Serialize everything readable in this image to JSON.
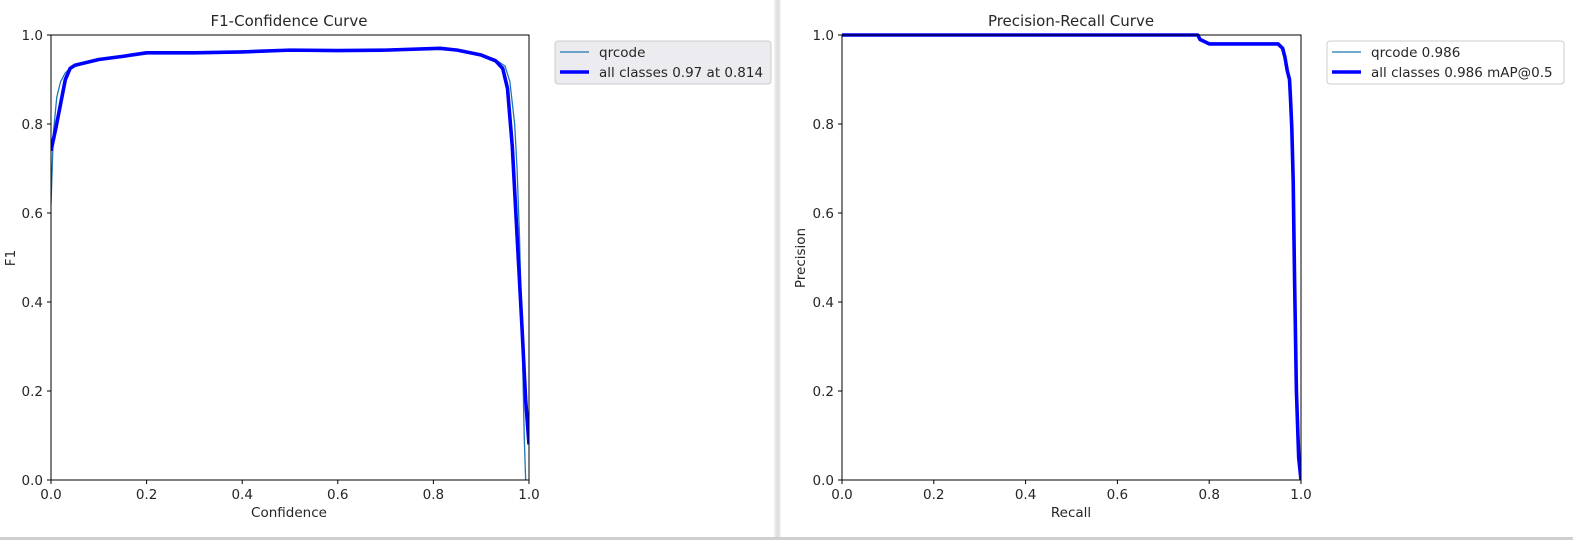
{
  "chart_data": [
    {
      "type": "line",
      "title": "F1-Confidence Curve",
      "xlabel": "Confidence",
      "ylabel": "F1",
      "xlim": [
        0,
        1
      ],
      "ylim": [
        0,
        1
      ],
      "xticks": [
        "0.0",
        "0.2",
        "0.4",
        "0.6",
        "0.8",
        "1.0"
      ],
      "yticks": [
        "0.0",
        "0.2",
        "0.4",
        "0.6",
        "0.8",
        "1.0"
      ],
      "grid": false,
      "legend_position": "outside-upper-right",
      "legend_shaded": true,
      "series": [
        {
          "name": "qrcode",
          "color": "#1f77b4",
          "linewidth": "thin",
          "points": [
            [
              0.0,
              0.62
            ],
            [
              0.005,
              0.78
            ],
            [
              0.012,
              0.86
            ],
            [
              0.02,
              0.895
            ],
            [
              0.03,
              0.915
            ],
            [
              0.045,
              0.93
            ],
            [
              0.06,
              0.935
            ],
            [
              0.1,
              0.945
            ],
            [
              0.15,
              0.952
            ],
            [
              0.2,
              0.96
            ],
            [
              0.3,
              0.96
            ],
            [
              0.4,
              0.962
            ],
            [
              0.5,
              0.966
            ],
            [
              0.6,
              0.965
            ],
            [
              0.7,
              0.966
            ],
            [
              0.8,
              0.968
            ],
            [
              0.85,
              0.966
            ],
            [
              0.9,
              0.955
            ],
            [
              0.93,
              0.945
            ],
            [
              0.95,
              0.93
            ],
            [
              0.96,
              0.895
            ],
            [
              0.97,
              0.8
            ],
            [
              0.975,
              0.7
            ],
            [
              0.98,
              0.55
            ],
            [
              0.985,
              0.35
            ],
            [
              0.99,
              0.1
            ],
            [
              0.993,
              0.0
            ]
          ]
        },
        {
          "name": "all classes 0.97 at 0.814",
          "color": "#0000ff",
          "linewidth": "thick",
          "points": [
            [
              0.0,
              0.74
            ],
            [
              0.01,
              0.79
            ],
            [
              0.02,
              0.845
            ],
            [
              0.03,
              0.9
            ],
            [
              0.04,
              0.925
            ],
            [
              0.05,
              0.932
            ],
            [
              0.1,
              0.945
            ],
            [
              0.15,
              0.952
            ],
            [
              0.2,
              0.96
            ],
            [
              0.3,
              0.96
            ],
            [
              0.4,
              0.962
            ],
            [
              0.5,
              0.966
            ],
            [
              0.6,
              0.965
            ],
            [
              0.7,
              0.966
            ],
            [
              0.814,
              0.97
            ],
            [
              0.85,
              0.966
            ],
            [
              0.9,
              0.955
            ],
            [
              0.93,
              0.942
            ],
            [
              0.945,
              0.925
            ],
            [
              0.955,
              0.88
            ],
            [
              0.965,
              0.75
            ],
            [
              0.975,
              0.55
            ],
            [
              0.985,
              0.35
            ],
            [
              0.993,
              0.18
            ],
            [
              1.0,
              0.08
            ]
          ]
        }
      ]
    },
    {
      "type": "line",
      "title": "Precision-Recall Curve",
      "xlabel": "Recall",
      "ylabel": "Precision",
      "xlim": [
        0,
        1
      ],
      "ylim": [
        0,
        1
      ],
      "xticks": [
        "0.0",
        "0.2",
        "0.4",
        "0.6",
        "0.8",
        "1.0"
      ],
      "yticks": [
        "0.0",
        "0.2",
        "0.4",
        "0.6",
        "0.8",
        "1.0"
      ],
      "grid": false,
      "legend_position": "outside-upper-right",
      "legend_shaded": false,
      "series": [
        {
          "name": "qrcode 0.986",
          "color": "#1f77b4",
          "linewidth": "thin",
          "points": [
            [
              0.0,
              1.0
            ],
            [
              0.775,
              1.0
            ],
            [
              0.78,
              0.99
            ],
            [
              0.79,
              0.985
            ],
            [
              0.8,
              0.98
            ],
            [
              0.95,
              0.98
            ],
            [
              0.96,
              0.97
            ],
            [
              0.965,
              0.95
            ],
            [
              0.97,
              0.92
            ],
            [
              0.975,
              0.9
            ],
            [
              0.977,
              0.86
            ],
            [
              0.98,
              0.79
            ],
            [
              0.983,
              0.67
            ],
            [
              0.986,
              0.45
            ],
            [
              0.99,
              0.2
            ],
            [
              0.995,
              0.05
            ],
            [
              1.0,
              0.0
            ]
          ]
        },
        {
          "name": "all classes 0.986 mAP@0.5",
          "color": "#0000ff",
          "linewidth": "thick",
          "points": [
            [
              0.0,
              1.0
            ],
            [
              0.775,
              1.0
            ],
            [
              0.78,
              0.99
            ],
            [
              0.79,
              0.985
            ],
            [
              0.8,
              0.98
            ],
            [
              0.95,
              0.98
            ],
            [
              0.96,
              0.97
            ],
            [
              0.965,
              0.95
            ],
            [
              0.97,
              0.92
            ],
            [
              0.975,
              0.9
            ],
            [
              0.977,
              0.86
            ],
            [
              0.98,
              0.79
            ],
            [
              0.983,
              0.67
            ],
            [
              0.986,
              0.45
            ],
            [
              0.99,
              0.2
            ],
            [
              0.995,
              0.05
            ],
            [
              1.0,
              0.0
            ]
          ]
        }
      ]
    }
  ]
}
